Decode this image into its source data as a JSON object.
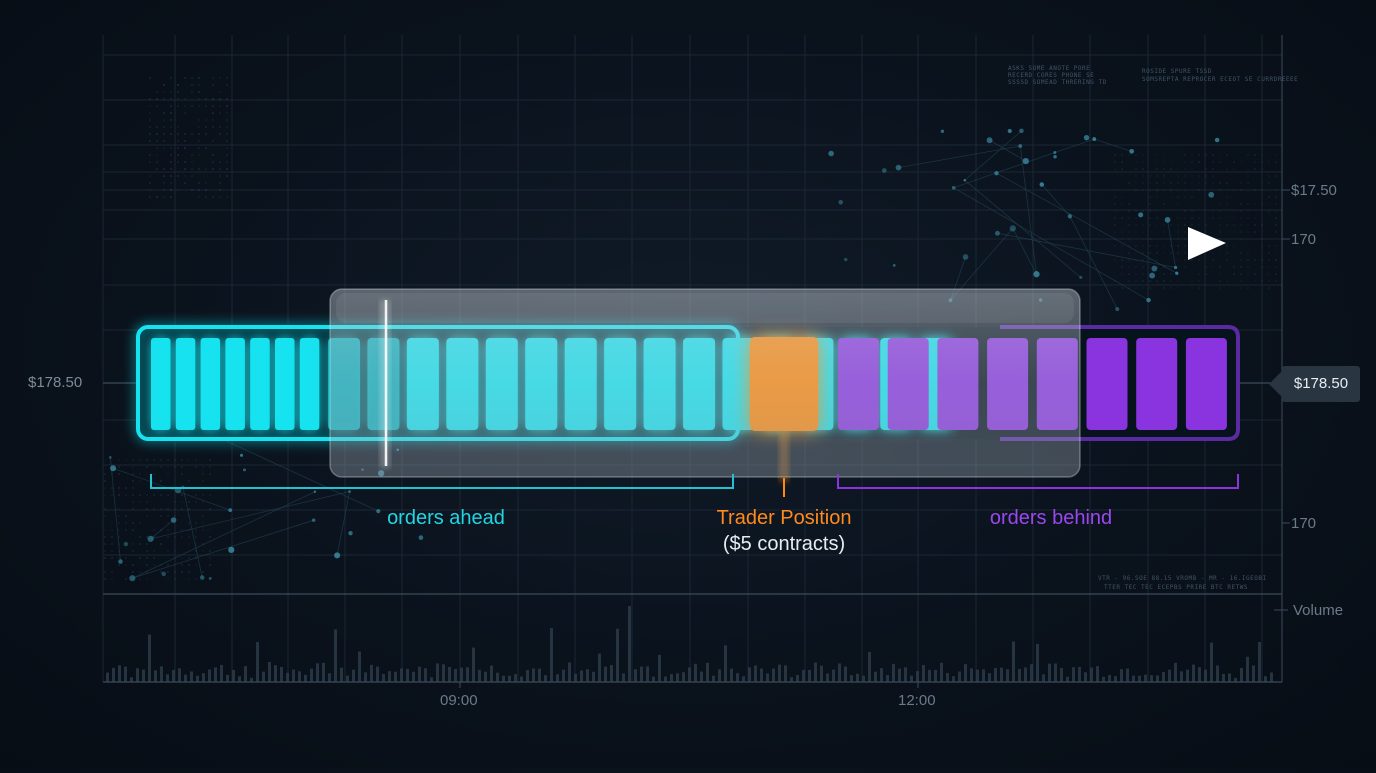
{
  "price_axis": {
    "left_price": "$178.50",
    "right_price_tag": "$178.50",
    "tick_upper": "$17.50",
    "tick_mid": "170",
    "tick_lower": "170",
    "volume_label": "Volume"
  },
  "time_axis": {
    "labels": [
      "09:00",
      "12:00"
    ]
  },
  "queue": {
    "ahead_count": 23,
    "behind_count": 8,
    "colors": {
      "ahead": "#19e3ef",
      "trader": "#ff8a10",
      "behind": "#8a34e0"
    }
  },
  "annotations": {
    "ahead": "orders ahead",
    "trader": "Trader Position",
    "trader_detail": "($5 contracts)",
    "behind": "orders behind"
  },
  "background_text": {
    "top_a": [
      "ASKS SOME ANOTE PORE",
      "RECERD CORES PHONE SE",
      "SSSSD SOMEAD THRERING TD"
    ],
    "top_b": [
      "ROSIDE SPURE TSSD",
      "SOMSREPTA REPROCER ECEOT SE CURRDREEEE"
    ],
    "bottom": [
      "VTR - 96.SOE 88.15 VROMB - MR - 16.IGEOBI",
      "TTER TEC TEC ECEPBS PRIRE BTC RETWS"
    ]
  }
}
